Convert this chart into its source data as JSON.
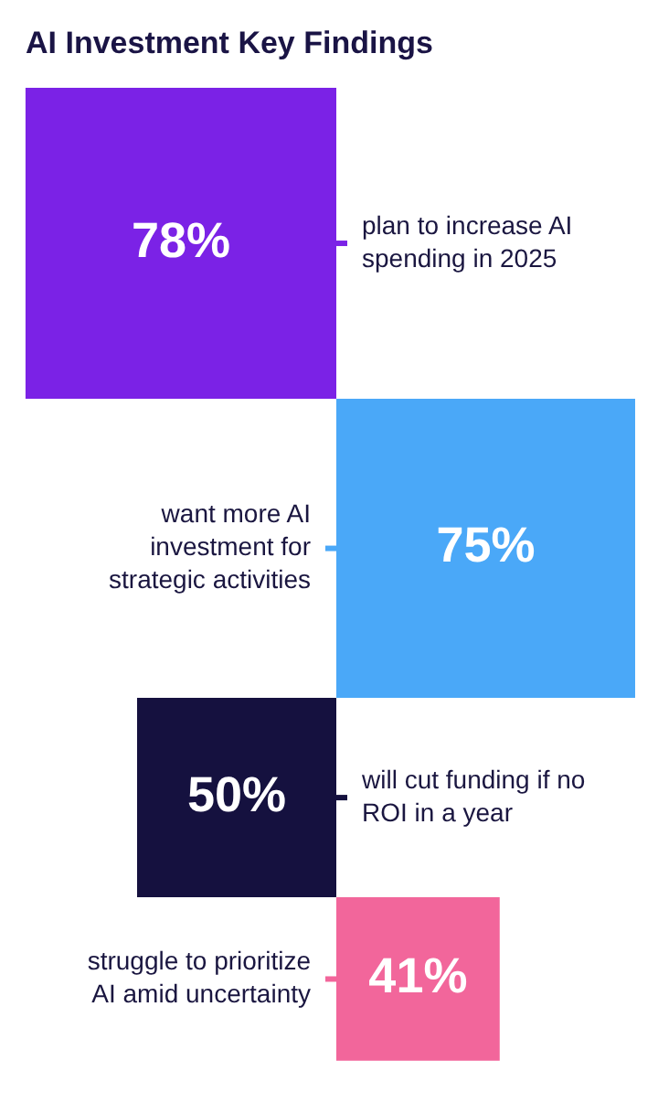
{
  "chart_data": {
    "type": "other",
    "title": "AI Investment Key Findings",
    "categories": [
      "plan to increase AI spending in 2025",
      "want more AI investment for strategic activities",
      "will cut funding if no ROI in a year",
      "struggle to prioritize AI amid uncertainty"
    ],
    "values": [
      78,
      75,
      50,
      41
    ],
    "value_labels": [
      "78%",
      "75%",
      "50%",
      "41%"
    ],
    "colors": [
      "#7b22e6",
      "#4aa8f8",
      "#15113f",
      "#f2669b"
    ]
  }
}
